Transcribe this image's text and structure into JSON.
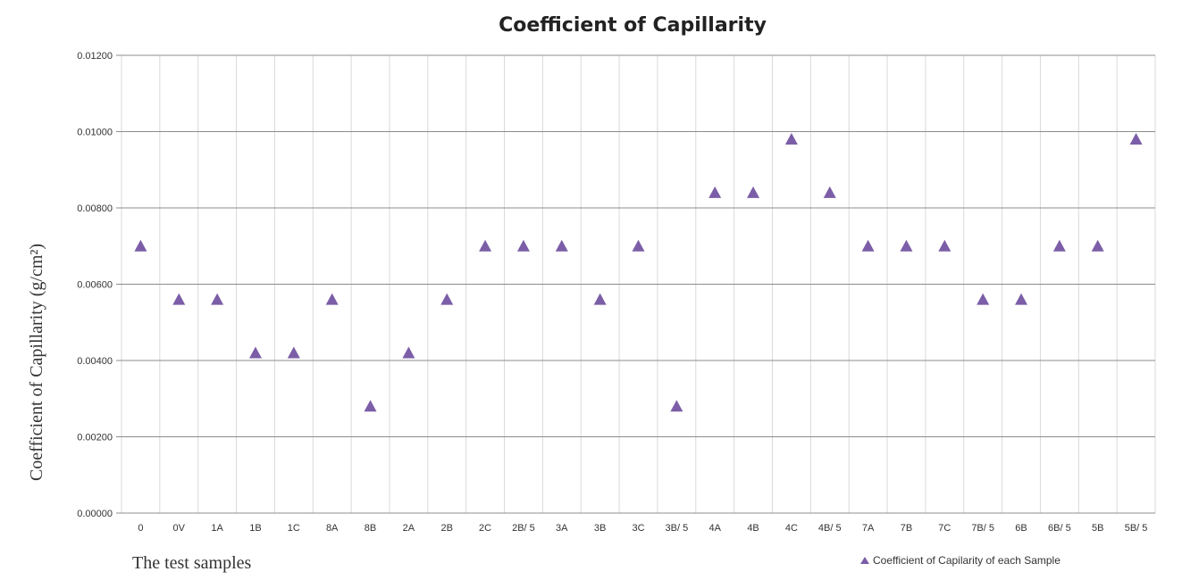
{
  "chart_data": {
    "type": "scatter",
    "title": "Coefficient of Capillarity",
    "ylabel": "Coefficient of Capillarity (g/cm²)",
    "xlabel": "The test samples",
    "categories": [
      "0",
      "0V",
      "1A",
      "1B",
      "1C",
      "8A",
      "8B",
      "2A",
      "2B",
      "2C",
      "2B/ 5",
      "3A",
      "3B",
      "3C",
      "3B/ 5",
      "4A",
      "4B",
      "4C",
      "4B/ 5",
      "7A",
      "7B",
      "7C",
      "7B/ 5",
      "6B",
      "6B/ 5",
      "5B",
      "5B/ 5"
    ],
    "series": [
      {
        "name": "Coefficient of Capilarity of each Sample",
        "values": [
          0.007,
          0.0056,
          0.0056,
          0.0042,
          0.0042,
          0.0056,
          0.0028,
          0.0042,
          0.0056,
          0.007,
          0.007,
          0.007,
          0.0056,
          0.007,
          0.0028,
          0.0084,
          0.0084,
          0.0098,
          0.0084,
          0.007,
          0.007,
          0.007,
          0.0056,
          0.0056,
          0.007,
          0.007,
          0.0098
        ]
      }
    ],
    "ylim": [
      0,
      0.012
    ],
    "yticks": [
      "0.00000",
      "0.00200",
      "0.00400",
      "0.00600",
      "0.00800",
      "0.01000",
      "0.01200"
    ],
    "grid": "horizontal and vertical",
    "legend_position": "bottom-right",
    "marker_color": "#7b5ea7"
  }
}
